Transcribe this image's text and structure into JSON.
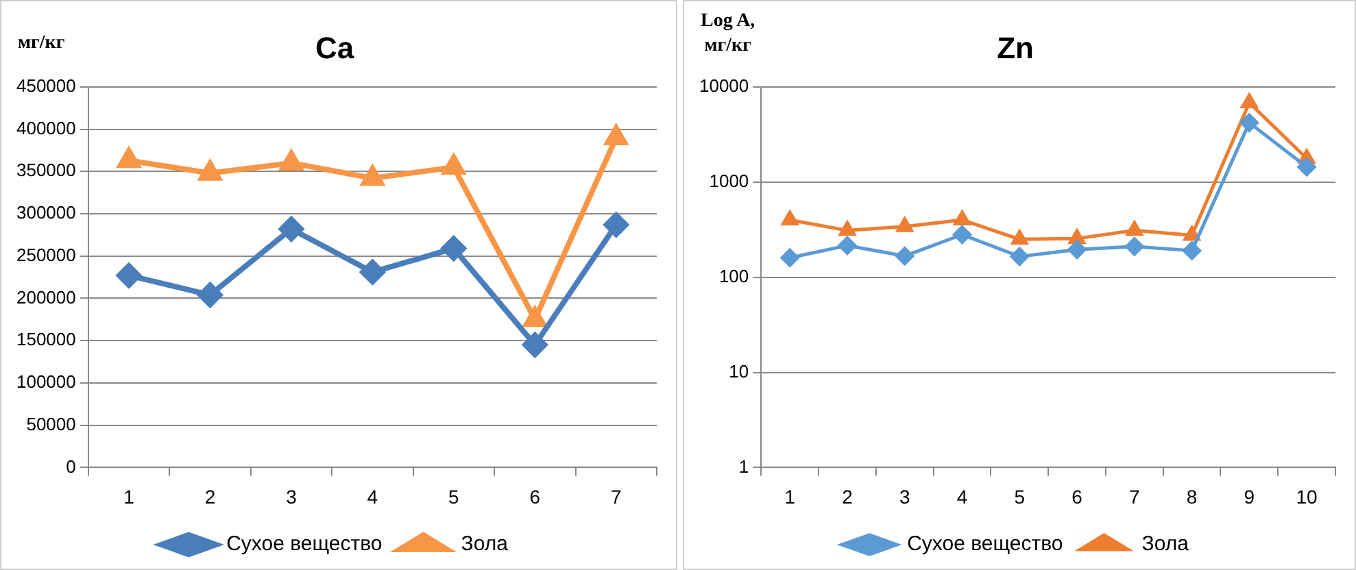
{
  "chart_data": [
    {
      "type": "line",
      "title": "Ca",
      "ylabel": "мг/кг",
      "categories": [
        "1",
        "2",
        "3",
        "4",
        "5",
        "6",
        "7"
      ],
      "series": [
        {
          "name": "Сухое вещество",
          "color": "#4a7ebb",
          "marker": "diamond",
          "values": [
            227000,
            204000,
            282000,
            231000,
            259000,
            145000,
            287000
          ]
        },
        {
          "name": "Зола",
          "color": "#f79646",
          "marker": "triangle",
          "values": [
            363000,
            348000,
            360000,
            342000,
            355000,
            175000,
            390000
          ]
        }
      ],
      "ylim": [
        0,
        450000
      ],
      "yticks": [
        0,
        50000,
        100000,
        150000,
        200000,
        250000,
        300000,
        350000,
        400000,
        450000
      ],
      "grid": "y",
      "legend": "bottom"
    },
    {
      "type": "line",
      "title": "Zn",
      "ylabel": "Log A,\nмг/кг",
      "categories": [
        "1",
        "2",
        "3",
        "4",
        "5",
        "6",
        "7",
        "8",
        "9",
        "10"
      ],
      "series": [
        {
          "name": "Сухое вещество",
          "color": "#5b9bd5",
          "marker": "diamond",
          "values": [
            160,
            215,
            167,
            280,
            165,
            195,
            210,
            190,
            4200,
            1440
          ]
        },
        {
          "name": "Зола",
          "color": "#ed7d31",
          "marker": "triangle",
          "values": [
            400,
            310,
            340,
            400,
            250,
            255,
            310,
            275,
            6800,
            1770
          ]
        }
      ],
      "log": "y",
      "ylim": [
        1,
        10000
      ],
      "yticks": [
        1,
        10,
        100,
        1000,
        10000
      ],
      "grid": "y",
      "legend": "bottom"
    }
  ]
}
